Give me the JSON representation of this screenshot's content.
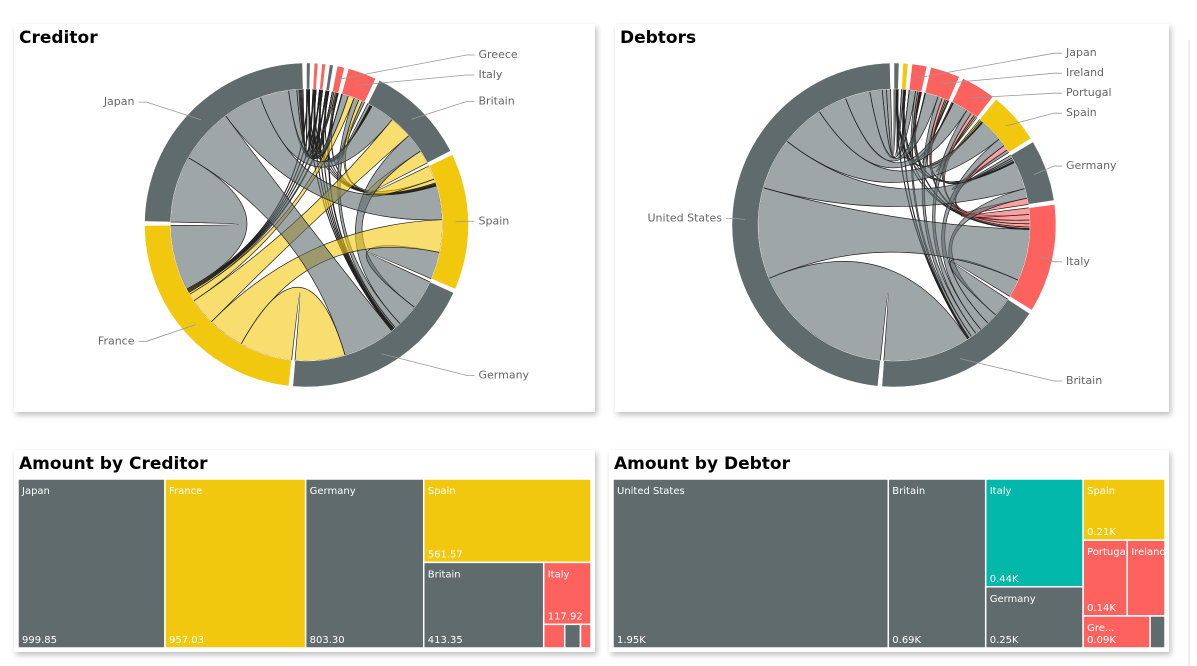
{
  "chart_data": [
    {
      "type": "chord",
      "title": "Creditor",
      "categories": [
        null,
        null,
        null,
        null,
        "Greece",
        "Italy",
        "Britain",
        "Spain",
        "Germany",
        "France",
        "Japan"
      ],
      "values": [
        15,
        15,
        15,
        15,
        30,
        118,
        413,
        562,
        803,
        957,
        1000
      ],
      "colors": [
        "#5F6B6D",
        "#FD625E",
        "#FD625E",
        "#5F6B6D",
        "#FD625E",
        "#FD625E",
        "#5F6B6D",
        "#F2C80F",
        "#5F6B6D",
        "#F2C80F",
        "#5F6B6D"
      ]
    },
    {
      "type": "chord",
      "title": "Debtors",
      "categories": [
        null,
        null,
        "Japan",
        "Ireland",
        "Portugal",
        "Spain",
        "Germany",
        "Italy",
        "Britain",
        "United States"
      ],
      "values": [
        20,
        20,
        60,
        120,
        140,
        210,
        250,
        440,
        690,
        1950
      ],
      "colors": [
        "#5F6B6D",
        "#F2C80F",
        "#FD625E",
        "#FD625E",
        "#FD625E",
        "#F2C80F",
        "#5F6B6D",
        "#FD625E",
        "#5F6B6D",
        "#5F6B6D"
      ]
    },
    {
      "type": "treemap",
      "title": "Amount by Creditor",
      "categories": [
        "Japan",
        "France",
        "Germany",
        "Spain",
        "Britain",
        "Italy",
        null,
        null,
        null
      ],
      "values": [
        999.85,
        957.03,
        803.3,
        561.57,
        413.35,
        117.92,
        20,
        15,
        10
      ],
      "value_labels": [
        "999.85",
        "957.03",
        "803.30",
        "561.57",
        "413.35",
        "117.92",
        null,
        null,
        null
      ],
      "colors": [
        "#5F6B6D",
        "#F2C80F",
        "#5F6B6D",
        "#F2C80F",
        "#5F6B6D",
        "#FD625E",
        "#FD625E",
        "#5F6B6D",
        "#FD625E"
      ]
    },
    {
      "type": "treemap",
      "title": "Amount by Debtor",
      "categories": [
        "United States",
        "Britain",
        "Italy",
        "Germany",
        "Spain",
        "Portugal",
        "Ireland",
        "Gre...",
        null
      ],
      "values": [
        1950,
        690,
        440,
        250,
        210,
        140,
        120,
        90,
        20
      ],
      "value_labels": [
        "1.95K",
        "0.69K",
        "0.44K",
        "0.25K",
        "0.21K",
        "0.14K",
        null,
        "0.09K",
        null
      ],
      "colors": [
        "#5F6B6D",
        "#5F6B6D",
        "#01B8AA",
        "#5F6B6D",
        "#F2C80F",
        "#FD625E",
        "#FD625E",
        "#FD625E",
        "#5F6B6D"
      ]
    }
  ]
}
